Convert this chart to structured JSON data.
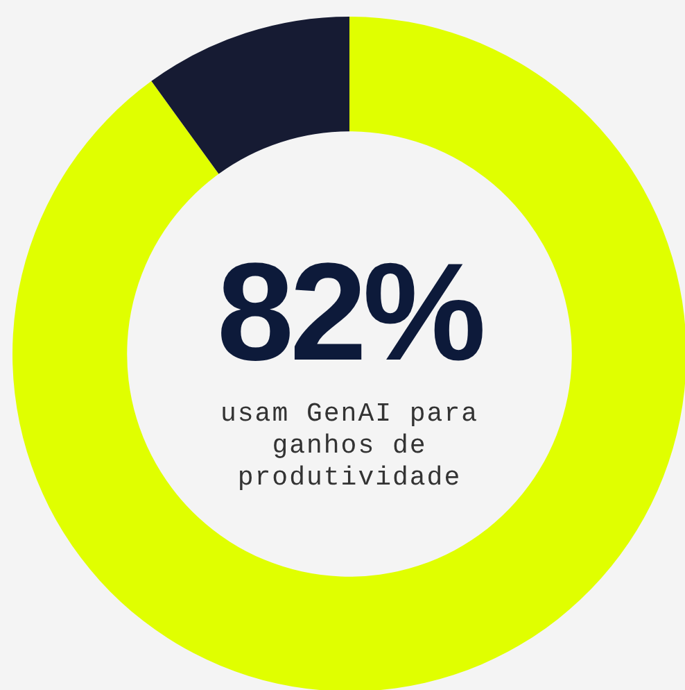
{
  "chart_data": {
    "type": "donut",
    "title": "82%",
    "subtitle": "usam GenAI para ganhos de produtividade",
    "categories": [
      null,
      null
    ],
    "values": [
      90,
      10
    ],
    "colors": [
      "#e0ff00",
      "#161b33"
    ],
    "legend": false
  }
}
